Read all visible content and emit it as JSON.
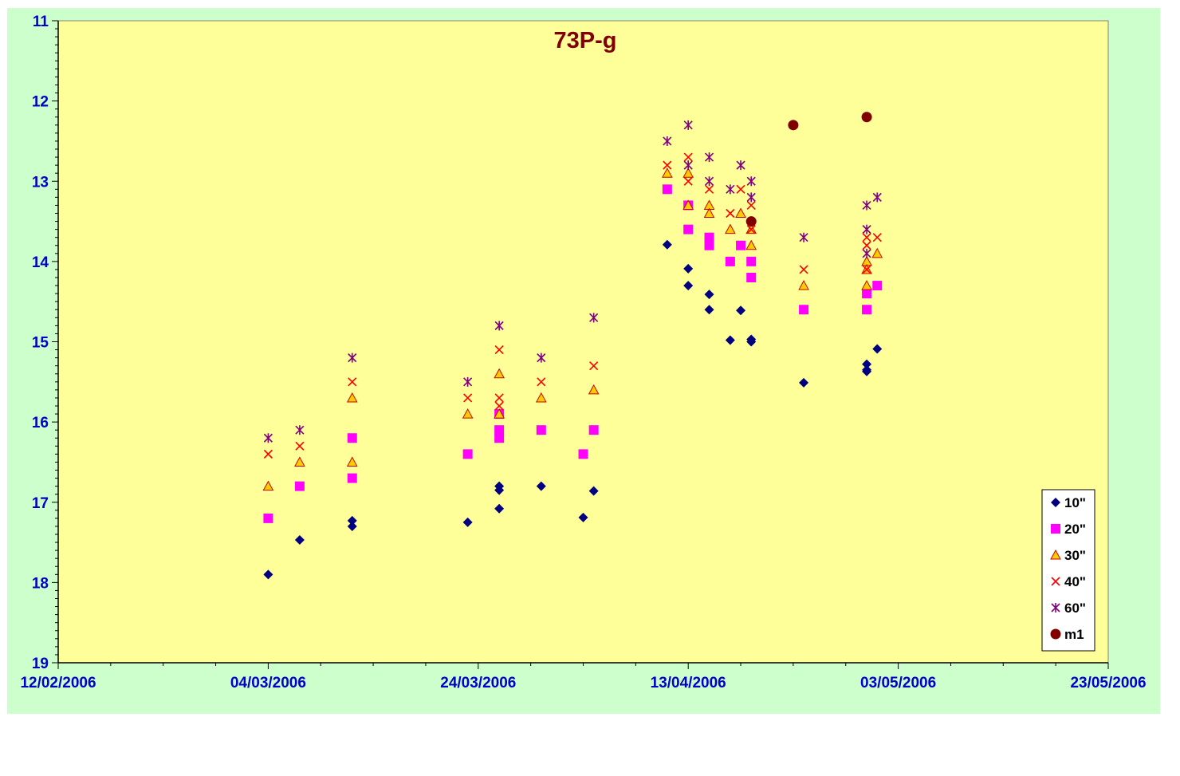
{
  "chart_data": {
    "type": "scatter",
    "title": "73P-g",
    "xlabel": "",
    "ylabel": "",
    "x_axis": {
      "type": "date",
      "min": "2006-02-12",
      "max": "2006-05-23",
      "major_ticks": [
        "2006-02-12",
        "2006-03-04",
        "2006-03-24",
        "2006-04-13",
        "2006-05-03",
        "2006-05-23"
      ],
      "tick_labels": [
        "12/02/2006",
        "04/03/2006",
        "24/03/2006",
        "13/04/2006",
        "03/05/2006",
        "23/05/2006"
      ]
    },
    "y_axis": {
      "min": 11,
      "max": 19,
      "reversed": true,
      "major_step": 1,
      "tick_labels": [
        "11",
        "12",
        "13",
        "14",
        "15",
        "16",
        "17",
        "18",
        "19"
      ]
    },
    "grid": false,
    "legend_position": "bottom-right",
    "plot_background": "#ffff99",
    "chart_background": "#ccffcc",
    "series": [
      {
        "name": "10\"",
        "marker": "diamond",
        "color": "#000080",
        "points": [
          [
            "2006-03-04",
            17.9
          ],
          [
            "2006-03-07",
            17.47
          ],
          [
            "2006-03-12",
            17.23
          ],
          [
            "2006-03-12",
            17.3
          ],
          [
            "2006-03-23",
            17.25
          ],
          [
            "2006-03-26",
            16.8
          ],
          [
            "2006-03-26",
            16.85
          ],
          [
            "2006-03-26",
            17.08
          ],
          [
            "2006-03-30",
            16.8
          ],
          [
            "2006-04-03",
            17.19
          ],
          [
            "2006-04-04",
            16.86
          ],
          [
            "2006-04-11",
            13.79
          ],
          [
            "2006-04-13",
            14.09
          ],
          [
            "2006-04-13",
            14.3
          ],
          [
            "2006-04-15",
            14.41
          ],
          [
            "2006-04-15",
            14.6
          ],
          [
            "2006-04-17",
            14.98
          ],
          [
            "2006-04-18",
            14.61
          ],
          [
            "2006-04-19",
            15.0
          ],
          [
            "2006-04-19",
            14.97
          ],
          [
            "2006-04-24",
            15.51
          ],
          [
            "2006-04-30",
            15.28
          ],
          [
            "2006-04-30",
            15.35
          ],
          [
            "2006-04-30",
            15.37
          ],
          [
            "2006-05-01",
            15.09
          ]
        ]
      },
      {
        "name": "20\"",
        "marker": "square",
        "color": "#ff00ff",
        "points": [
          [
            "2006-03-04",
            17.2
          ],
          [
            "2006-03-07",
            16.8
          ],
          [
            "2006-03-12",
            16.2
          ],
          [
            "2006-03-12",
            16.7
          ],
          [
            "2006-03-23",
            16.4
          ],
          [
            "2006-03-26",
            16.1
          ],
          [
            "2006-03-26",
            16.2
          ],
          [
            "2006-03-26",
            15.9
          ],
          [
            "2006-03-30",
            16.1
          ],
          [
            "2006-04-03",
            16.4
          ],
          [
            "2006-04-04",
            16.1
          ],
          [
            "2006-04-11",
            13.1
          ],
          [
            "2006-04-13",
            13.3
          ],
          [
            "2006-04-13",
            13.6
          ],
          [
            "2006-04-15",
            13.7
          ],
          [
            "2006-04-15",
            13.8
          ],
          [
            "2006-04-17",
            14.0
          ],
          [
            "2006-04-18",
            13.8
          ],
          [
            "2006-04-19",
            14.0
          ],
          [
            "2006-04-19",
            14.2
          ],
          [
            "2006-04-24",
            14.6
          ],
          [
            "2006-04-30",
            14.6
          ],
          [
            "2006-04-30",
            14.4
          ],
          [
            "2006-05-01",
            14.3
          ]
        ]
      },
      {
        "name": "30\"",
        "marker": "triangle",
        "color": "#ffcc00",
        "points": [
          [
            "2006-03-04",
            16.8
          ],
          [
            "2006-03-07",
            16.5
          ],
          [
            "2006-03-12",
            15.7
          ],
          [
            "2006-03-12",
            16.5
          ],
          [
            "2006-03-23",
            15.9
          ],
          [
            "2006-03-26",
            15.9
          ],
          [
            "2006-03-26",
            15.4
          ],
          [
            "2006-03-30",
            15.7
          ],
          [
            "2006-04-04",
            15.6
          ],
          [
            "2006-04-11",
            12.9
          ],
          [
            "2006-04-13",
            12.9
          ],
          [
            "2006-04-13",
            13.3
          ],
          [
            "2006-04-15",
            13.3
          ],
          [
            "2006-04-15",
            13.4
          ],
          [
            "2006-04-17",
            13.6
          ],
          [
            "2006-04-18",
            13.4
          ],
          [
            "2006-04-19",
            13.6
          ],
          [
            "2006-04-19",
            13.8
          ],
          [
            "2006-04-24",
            14.3
          ],
          [
            "2006-04-30",
            14.3
          ],
          [
            "2006-04-30",
            14.0
          ],
          [
            "2006-04-30",
            14.1
          ],
          [
            "2006-05-01",
            13.9
          ]
        ]
      },
      {
        "name": "40\"",
        "marker": "x",
        "color": "#ff0000",
        "points": [
          [
            "2006-03-04",
            16.4
          ],
          [
            "2006-03-07",
            16.3
          ],
          [
            "2006-03-12",
            15.5
          ],
          [
            "2006-03-23",
            15.7
          ],
          [
            "2006-03-26",
            15.7
          ],
          [
            "2006-03-26",
            15.8
          ],
          [
            "2006-03-26",
            15.1
          ],
          [
            "2006-03-30",
            15.5
          ],
          [
            "2006-04-04",
            15.3
          ],
          [
            "2006-04-11",
            12.8
          ],
          [
            "2006-04-13",
            12.7
          ],
          [
            "2006-04-13",
            13.0
          ],
          [
            "2006-04-15",
            13.1
          ],
          [
            "2006-04-17",
            13.4
          ],
          [
            "2006-04-18",
            13.1
          ],
          [
            "2006-04-19",
            13.3
          ],
          [
            "2006-04-19",
            13.6
          ],
          [
            "2006-04-24",
            14.1
          ],
          [
            "2006-04-30",
            13.7
          ],
          [
            "2006-04-30",
            13.8
          ],
          [
            "2006-04-30",
            14.1
          ],
          [
            "2006-05-01",
            13.7
          ]
        ]
      },
      {
        "name": "60\"",
        "marker": "asterisk",
        "color": "#800080",
        "points": [
          [
            "2006-03-04",
            16.2
          ],
          [
            "2006-03-07",
            16.1
          ],
          [
            "2006-03-12",
            15.2
          ],
          [
            "2006-03-23",
            15.5
          ],
          [
            "2006-03-26",
            14.8
          ],
          [
            "2006-03-30",
            15.2
          ],
          [
            "2006-04-04",
            14.7
          ],
          [
            "2006-04-11",
            12.5
          ],
          [
            "2006-04-13",
            12.3
          ],
          [
            "2006-04-13",
            12.8
          ],
          [
            "2006-04-15",
            12.7
          ],
          [
            "2006-04-15",
            13.0
          ],
          [
            "2006-04-17",
            13.1
          ],
          [
            "2006-04-18",
            12.8
          ],
          [
            "2006-04-19",
            13.0
          ],
          [
            "2006-04-19",
            13.2
          ],
          [
            "2006-04-24",
            13.7
          ],
          [
            "2006-04-30",
            13.3
          ],
          [
            "2006-04-30",
            13.6
          ],
          [
            "2006-04-30",
            13.9
          ],
          [
            "2006-05-01",
            13.2
          ]
        ]
      },
      {
        "name": "m1",
        "marker": "circle",
        "color": "#800000",
        "points": [
          [
            "2006-04-19",
            13.5
          ],
          [
            "2006-04-23",
            12.3
          ],
          [
            "2006-04-30",
            12.2
          ]
        ]
      }
    ]
  }
}
